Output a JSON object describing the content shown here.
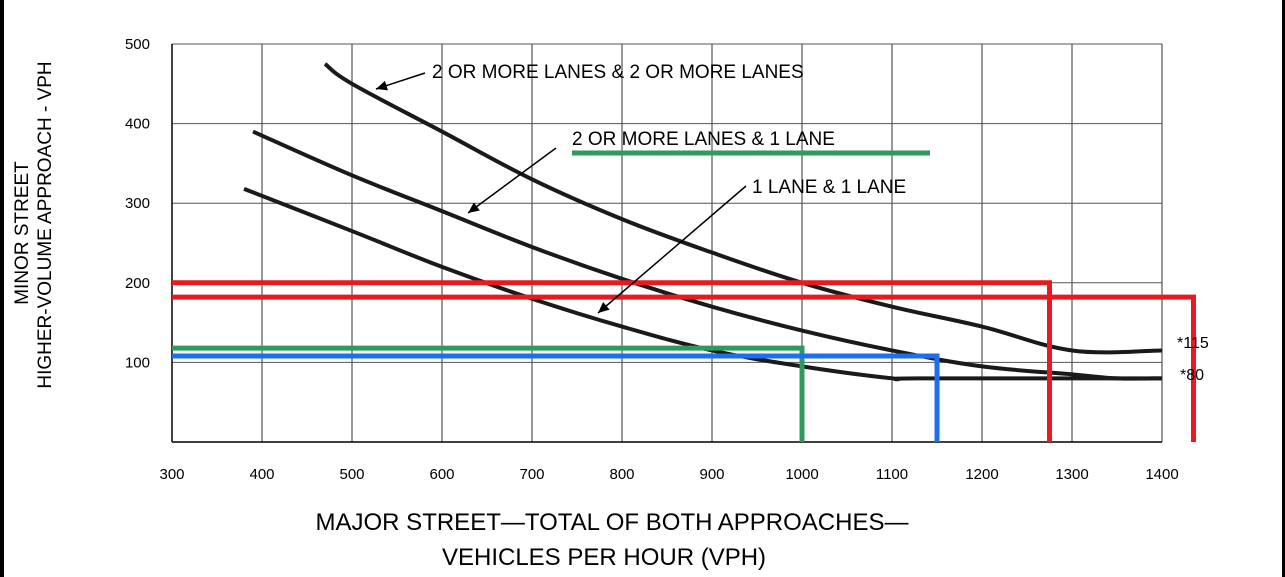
{
  "chart_data": {
    "type": "line",
    "title": "",
    "xlabel_line1": "MAJOR STREET—TOTAL OF BOTH APPROACHES—",
    "xlabel_line2": "VEHICLES PER HOUR (VPH)",
    "ylabel_line1": "MINOR STREET",
    "ylabel_line2": "HIGHER-VOLUME APPROACH - VPH",
    "xlim": [
      300,
      1400
    ],
    "ylim": [
      0,
      500
    ],
    "x_ticks": [
      300,
      400,
      500,
      600,
      700,
      800,
      900,
      1000,
      1100,
      1200,
      1300,
      1400
    ],
    "y_ticks": [
      100,
      200,
      300,
      400,
      500
    ],
    "grid": true,
    "series": [
      {
        "name": "2 OR MORE LANES & 2 OR MORE LANES",
        "x": [
          470,
          500,
          600,
          700,
          800,
          900,
          1000,
          1100,
          1200,
          1300,
          1400
        ],
        "y": [
          475,
          450,
          390,
          330,
          280,
          238,
          200,
          170,
          145,
          115,
          115
        ]
      },
      {
        "name": "2 OR MORE LANES & 1 LANE",
        "x": [
          390,
          500,
          600,
          700,
          800,
          900,
          1000,
          1100,
          1200,
          1300,
          1350,
          1400
        ],
        "y": [
          390,
          335,
          290,
          245,
          205,
          170,
          140,
          115,
          95,
          85,
          80,
          80
        ]
      },
      {
        "name": "1 LANE & 1 LANE",
        "x": [
          380,
          500,
          600,
          700,
          800,
          900,
          1000,
          1100,
          1130,
          1400
        ],
        "y": [
          318,
          265,
          220,
          180,
          145,
          115,
          95,
          80,
          80,
          80
        ]
      }
    ],
    "annotations": [
      {
        "text": "*115",
        "y": 115
      },
      {
        "text": "*80",
        "y": 80
      }
    ],
    "overlay_lines": [
      {
        "color": "#e8191f",
        "y": 200,
        "x_end": 1275,
        "drop": true
      },
      {
        "color": "#e8191f",
        "y": 182,
        "x_end": 1435,
        "drop": true
      },
      {
        "color": "#2e9a5f",
        "y": 118,
        "x_end": 1000,
        "drop": true
      },
      {
        "color": "#1d6ff0",
        "y": 108,
        "x_end": 1150,
        "drop": true
      }
    ],
    "legend_underline": {
      "color": "#2e9a5f"
    }
  },
  "colors": {
    "curve": "#1a1a1a",
    "grid": "#555555",
    "red": "#e8191f",
    "green": "#2e9a5f",
    "blue": "#1d6ff0"
  }
}
